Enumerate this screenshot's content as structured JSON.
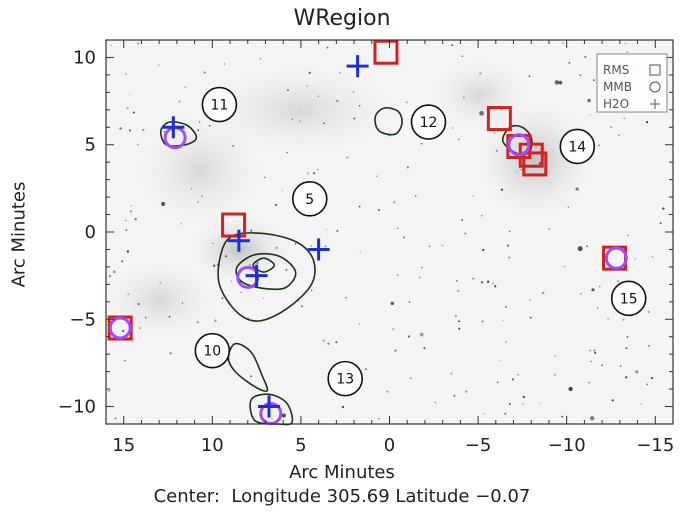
{
  "chart_data": {
    "type": "scatter",
    "title": "WRegion",
    "xlabel": "Arc Minutes",
    "ylabel": "Arc Minutes",
    "footer": {
      "prefix": "Center:",
      "longitude_label": "Longitude",
      "longitude": "305.69",
      "latitude_label": "Latitude",
      "latitude": "−0.07"
    },
    "xlim": [
      16,
      -16
    ],
    "ylim": [
      -11,
      11
    ],
    "x_ticks": [
      15,
      10,
      5,
      0,
      -5,
      -10,
      -15
    ],
    "x_tick_labels": [
      "15",
      "10",
      "5",
      "0",
      "−5",
      "−10",
      "−15"
    ],
    "y_ticks": [
      10,
      5,
      0,
      -5,
      -10
    ],
    "y_tick_labels": [
      "10",
      "5",
      "0",
      "−5",
      "−10"
    ],
    "legend": [
      {
        "name": "RMS",
        "marker": "square",
        "color": "#d42020"
      },
      {
        "name": "MMB",
        "marker": "circle",
        "color": "#9b4dff"
      },
      {
        "name": "H2O",
        "marker": "plus",
        "color": "#1e2fd0"
      }
    ],
    "legend_position": "top-right",
    "series": [
      {
        "name": "RMS",
        "marker": "square",
        "points": [
          {
            "x": 0.2,
            "y": 10.3
          },
          {
            "x": -6.2,
            "y": 6.5
          },
          {
            "x": -7.3,
            "y": 4.9
          },
          {
            "x": -8.0,
            "y": 4.4
          },
          {
            "x": -8.2,
            "y": 3.9
          },
          {
            "x": 8.8,
            "y": 0.4
          },
          {
            "x": -12.7,
            "y": -1.5
          },
          {
            "x": 15.2,
            "y": -5.5
          }
        ]
      },
      {
        "name": "MMB",
        "marker": "circle",
        "points": [
          {
            "x": 12.1,
            "y": 5.4
          },
          {
            "x": -7.3,
            "y": 5.0
          },
          {
            "x": 8.0,
            "y": -2.6
          },
          {
            "x": -12.8,
            "y": -1.5
          },
          {
            "x": 15.2,
            "y": -5.5
          },
          {
            "x": 6.7,
            "y": -10.4
          }
        ]
      },
      {
        "name": "H2O",
        "marker": "plus",
        "points": [
          {
            "x": 1.8,
            "y": 9.5
          },
          {
            "x": 12.2,
            "y": 6.0
          },
          {
            "x": 8.5,
            "y": -0.5
          },
          {
            "x": 4.0,
            "y": -1.0
          },
          {
            "x": 7.5,
            "y": -2.5
          },
          {
            "x": 6.8,
            "y": -10.0
          }
        ]
      }
    ],
    "region_labels": [
      {
        "label": "11",
        "x": 9.6,
        "y": 7.3
      },
      {
        "label": "12",
        "x": -2.2,
        "y": 6.3
      },
      {
        "label": "14",
        "x": -10.6,
        "y": 4.9
      },
      {
        "label": "5",
        "x": 4.5,
        "y": 1.9
      },
      {
        "label": "15",
        "x": -13.5,
        "y": -3.8
      },
      {
        "label": "10",
        "x": 10.0,
        "y": -6.8
      },
      {
        "label": "13",
        "x": 2.5,
        "y": -8.4
      }
    ],
    "contours": [
      {
        "points": [
          [
            9.5,
            -1.2
          ],
          [
            8.8,
            -0.2
          ],
          [
            7.0,
            -0.1
          ],
          [
            5.2,
            -0.6
          ],
          [
            4.3,
            -1.6
          ],
          [
            4.4,
            -3.0
          ],
          [
            5.8,
            -4.4
          ],
          [
            7.4,
            -5.1
          ],
          [
            8.6,
            -4.6
          ],
          [
            9.6,
            -3.0
          ]
        ]
      },
      {
        "points": [
          [
            8.6,
            -2.0
          ],
          [
            7.6,
            -1.3
          ],
          [
            6.2,
            -1.4
          ],
          [
            5.3,
            -2.3
          ],
          [
            5.9,
            -3.2
          ],
          [
            7.3,
            -3.2
          ],
          [
            8.4,
            -2.8
          ]
        ]
      },
      {
        "points": [
          [
            7.7,
            -1.9
          ],
          [
            7.1,
            -1.5
          ],
          [
            6.5,
            -1.9
          ],
          [
            7.1,
            -2.3
          ]
        ]
      },
      {
        "points": [
          [
            12.9,
            5.8
          ],
          [
            12.4,
            6.3
          ],
          [
            11.4,
            6.1
          ],
          [
            10.9,
            5.4
          ],
          [
            11.5,
            5.0
          ],
          [
            12.6,
            5.0
          ]
        ]
      },
      {
        "points": [
          [
            0.8,
            6.6
          ],
          [
            0.3,
            7.1
          ],
          [
            -0.5,
            6.9
          ],
          [
            -0.7,
            6.2
          ],
          [
            -0.3,
            5.6
          ],
          [
            0.6,
            5.8
          ]
        ]
      },
      {
        "points": [
          [
            -6.4,
            5.2
          ],
          [
            -6.8,
            6.0
          ],
          [
            -7.5,
            6.0
          ],
          [
            -8.0,
            5.4
          ],
          [
            -7.9,
            4.6
          ],
          [
            -7.2,
            4.5
          ]
        ]
      },
      {
        "points": [
          [
            8.7,
            -6.4
          ],
          [
            7.8,
            -6.9
          ],
          [
            7.2,
            -8.2
          ],
          [
            6.9,
            -9.1
          ],
          [
            7.7,
            -8.8
          ],
          [
            8.7,
            -8.0
          ],
          [
            9.1,
            -7.2
          ]
        ]
      },
      {
        "points": [
          [
            7.8,
            -9.6
          ],
          [
            6.8,
            -9.3
          ],
          [
            5.8,
            -9.8
          ],
          [
            5.5,
            -10.9
          ],
          [
            6.3,
            -11.0
          ],
          [
            7.6,
            -10.8
          ]
        ]
      }
    ]
  }
}
